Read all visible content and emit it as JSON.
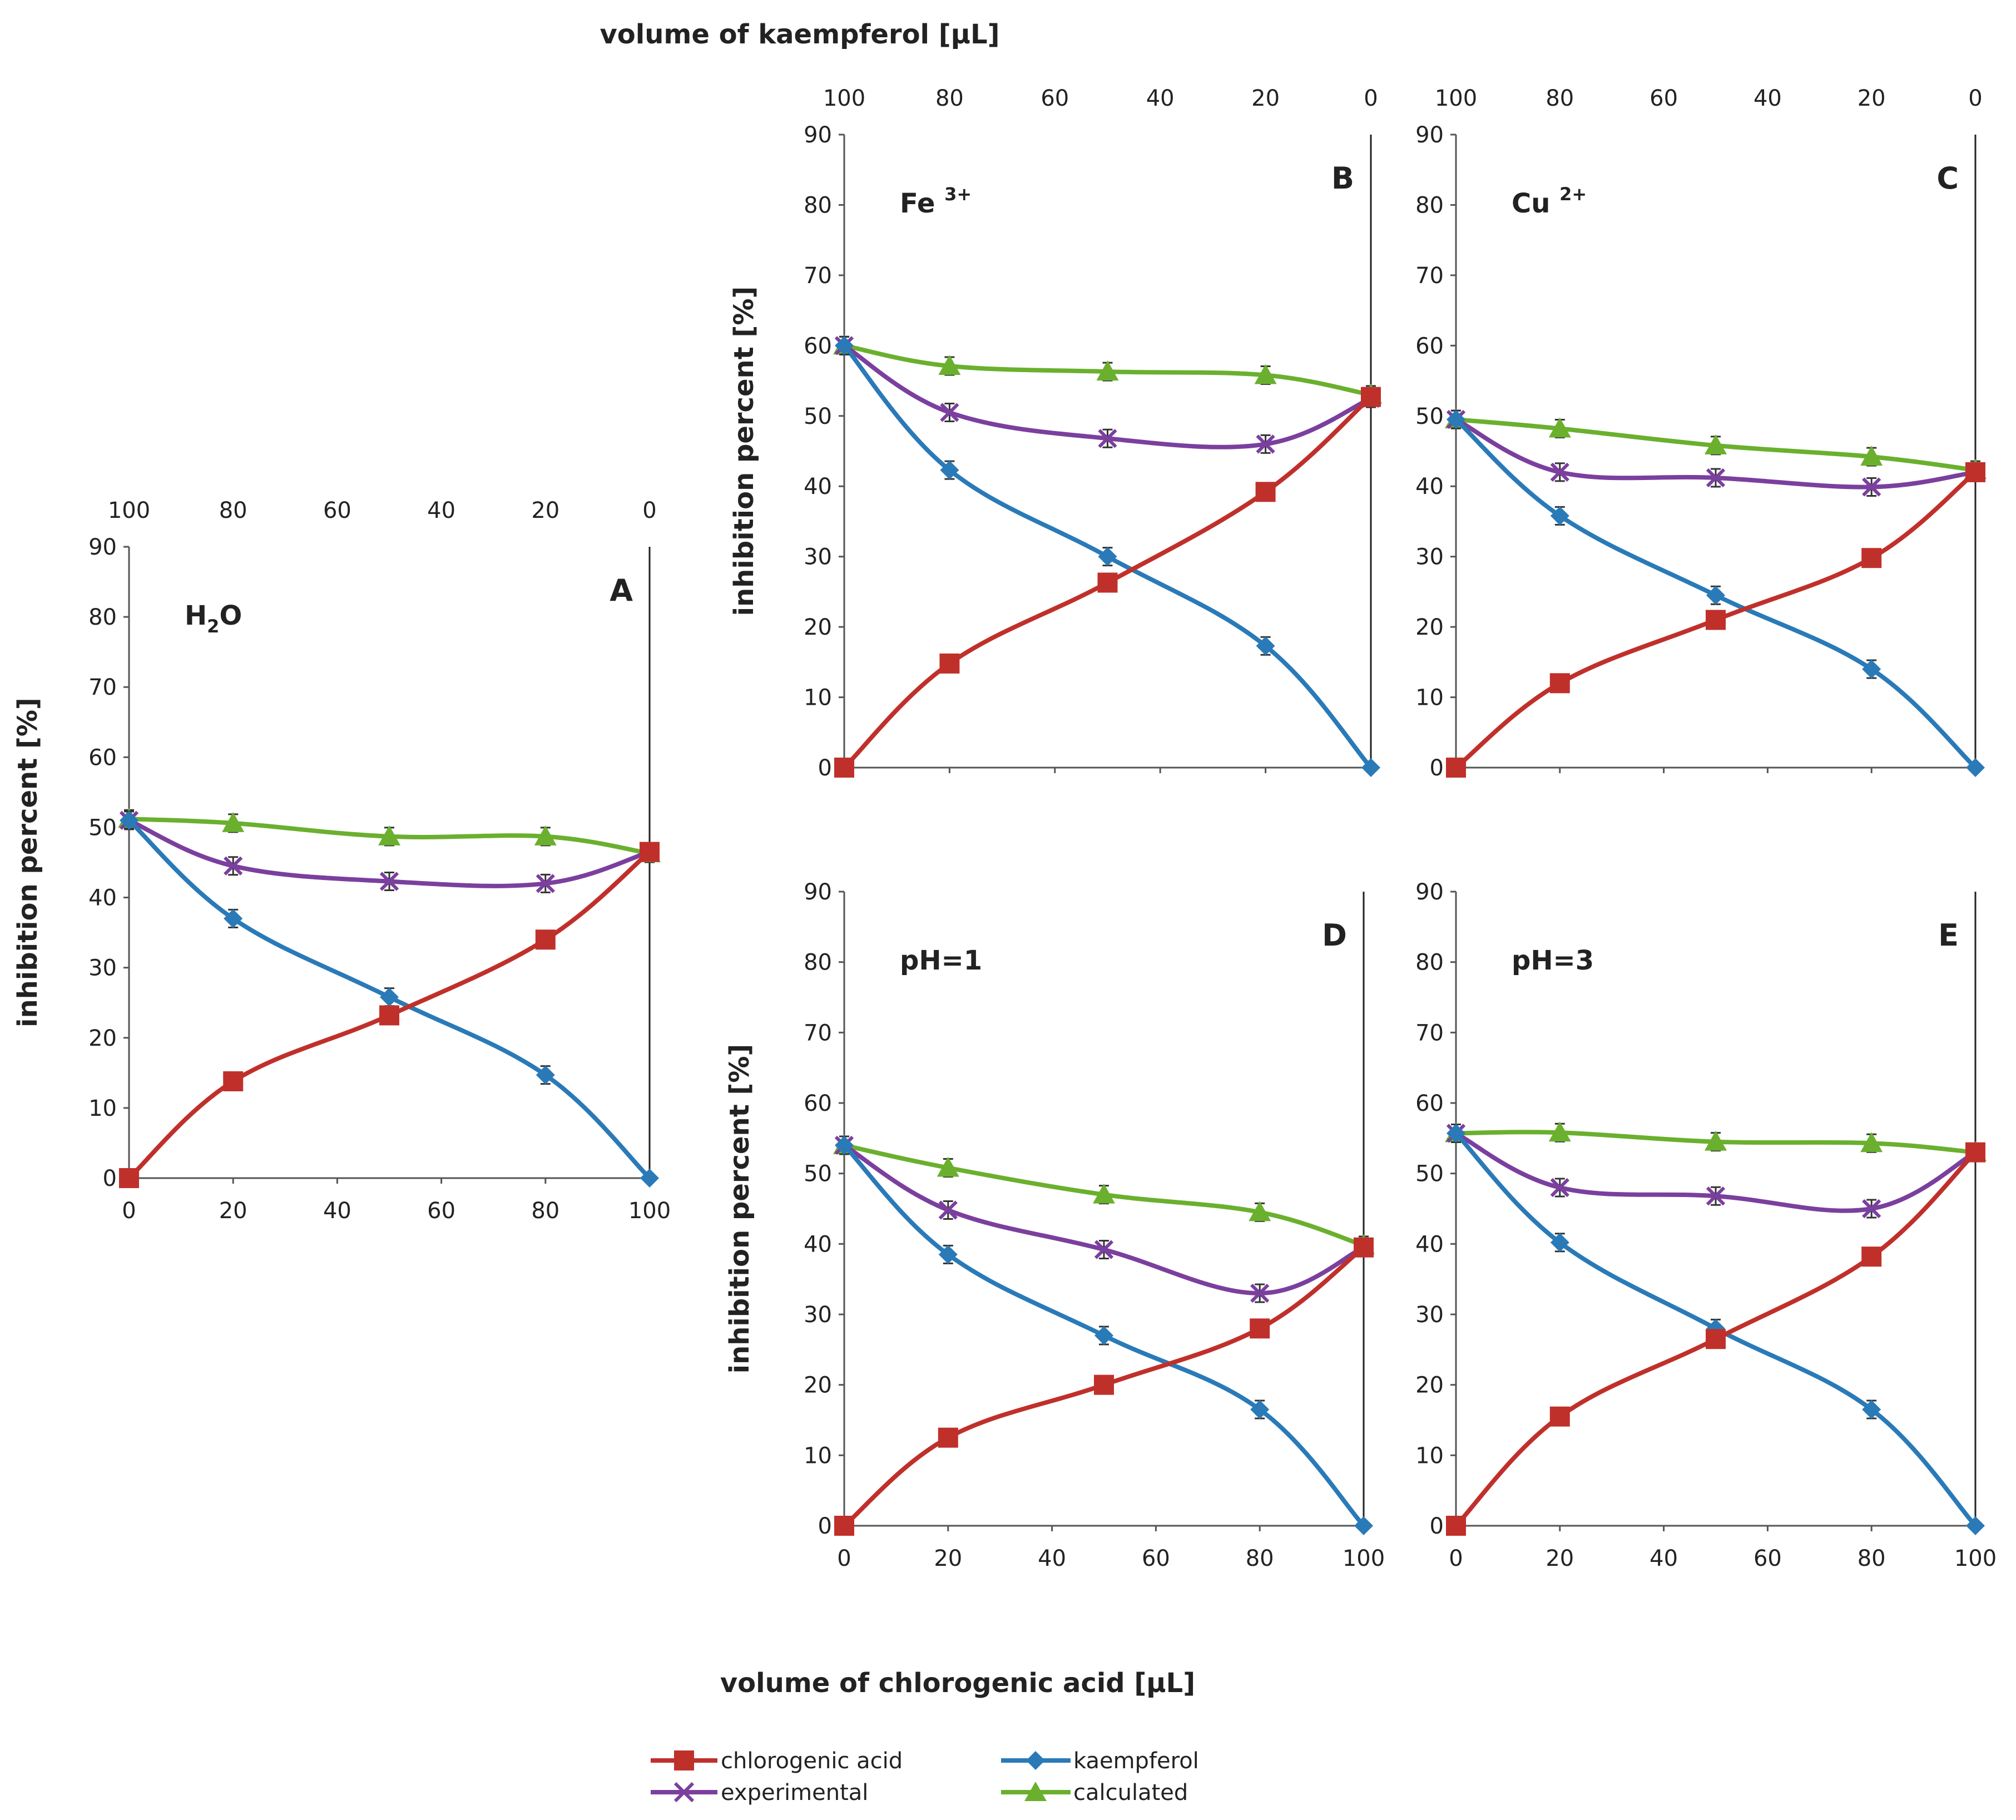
{
  "chart_data": {
    "type": "line",
    "title": "",
    "top_axis_label": "volume of kaempferol [µL]",
    "bottom_axis_label": "volume of chlorogenic acid [µL]",
    "y_axis_label": "inhibition percent [%]",
    "x": [
      0,
      20,
      50,
      80,
      100
    ],
    "x_ticks": [
      0,
      20,
      40,
      60,
      80,
      100
    ],
    "top_x_ticks": [
      100,
      80,
      60,
      40,
      20,
      0
    ],
    "y_ticks": [
      0,
      10,
      20,
      30,
      40,
      50,
      60,
      70,
      80,
      90
    ],
    "ylim": [
      0,
      90
    ],
    "xlim": [
      0,
      100
    ],
    "series_styles": [
      {
        "key": "chlorogenic",
        "name": "chlorogenic acid",
        "color": "#c0302b",
        "marker": "square"
      },
      {
        "key": "kaempferol",
        "name": "kaempferol",
        "color": "#2a7ab8",
        "marker": "diamond"
      },
      {
        "key": "experimental",
        "name": "experimental",
        "color": "#7b3f9e",
        "marker": "x"
      },
      {
        "key": "calculated",
        "name": "calculated",
        "color": "#6ab02e",
        "marker": "triangle"
      }
    ],
    "legend": [
      "chlorogenic acid",
      "kaempferol",
      "experimental",
      "calculated"
    ],
    "panels": [
      {
        "id": "A",
        "letter": "A",
        "condition": "H2O",
        "condition_parts": [
          "H",
          "2",
          "O"
        ],
        "series": {
          "chlorogenic": [
            0,
            13.8,
            23.2,
            34,
            46.5
          ],
          "kaempferol": [
            51,
            37,
            25.8,
            14.7,
            0
          ],
          "experimental": [
            51,
            44.5,
            42.3,
            42,
            46.5
          ],
          "calculated": [
            51.2,
            50.6,
            48.7,
            48.7,
            46.3
          ]
        }
      },
      {
        "id": "B",
        "letter": "B",
        "condition": "Fe3+",
        "condition_parts": [
          "Fe ",
          "3+"
        ],
        "series": {
          "chlorogenic": [
            0,
            14.8,
            26.3,
            39.2,
            52.7
          ],
          "kaempferol": [
            60,
            42.3,
            30,
            17.3,
            0
          ],
          "experimental": [
            60,
            50.5,
            46.8,
            46,
            52.5
          ],
          "calculated": [
            60,
            57.1,
            56.3,
            55.8,
            53
          ]
        }
      },
      {
        "id": "C",
        "letter": "C",
        "condition": "Cu2+",
        "condition_parts": [
          "Cu ",
          "2+"
        ],
        "series": {
          "chlorogenic": [
            0,
            12,
            21,
            29.8,
            42
          ],
          "kaempferol": [
            49.5,
            35.8,
            24.5,
            14,
            0
          ],
          "experimental": [
            49.5,
            42,
            41.2,
            39.9,
            42
          ],
          "calculated": [
            49.5,
            48.2,
            45.8,
            44.2,
            42.3
          ]
        }
      },
      {
        "id": "D",
        "letter": "D",
        "condition": "pH=1",
        "condition_parts": [
          "pH=1",
          ""
        ],
        "series": {
          "chlorogenic": [
            0,
            12.5,
            20,
            28,
            39.5
          ],
          "kaempferol": [
            54,
            38.5,
            27,
            16.5,
            0
          ],
          "experimental": [
            54,
            44.8,
            39.2,
            33,
            39.5
          ],
          "calculated": [
            54,
            50.8,
            47,
            44.5,
            39.8
          ]
        }
      },
      {
        "id": "E",
        "letter": "E",
        "condition": "pH=3",
        "condition_parts": [
          "pH=3",
          ""
        ],
        "series": {
          "chlorogenic": [
            0,
            15.5,
            26.5,
            38.2,
            53
          ],
          "kaempferol": [
            55.7,
            40.2,
            28,
            16.5,
            0
          ],
          "experimental": [
            55.7,
            48,
            46.8,
            45,
            53
          ],
          "calculated": [
            55.7,
            55.8,
            54.5,
            54.3,
            53
          ]
        }
      }
    ]
  }
}
